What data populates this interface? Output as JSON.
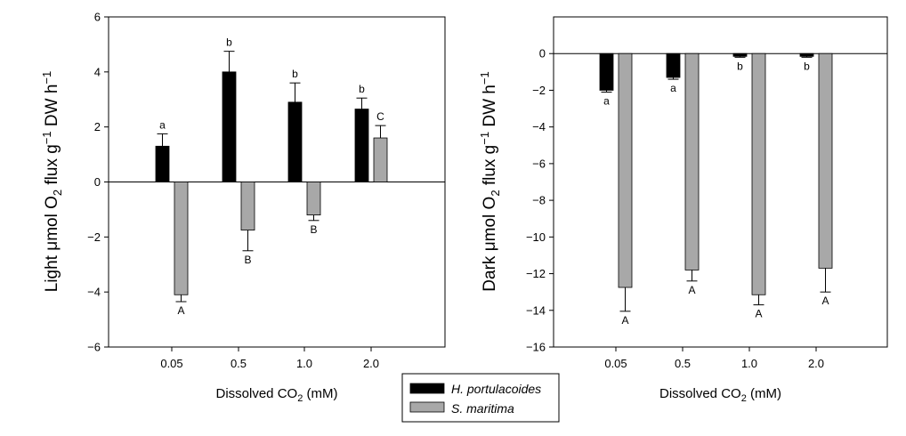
{
  "chart_data": [
    {
      "type": "bar",
      "panel": "light",
      "categories": [
        "0.05",
        "0.5",
        "1.0",
        "2.0"
      ],
      "xlabel": "Dissolved CO2 (mM)",
      "ylabel": {
        "prefix": "Light",
        "text": " μmol O",
        "sub": "2",
        "rest": " flux g",
        "sup": "−1",
        "tail": " DW h",
        "sup2": "−1"
      },
      "ylim": [
        -6,
        6
      ],
      "yticks": [
        -6,
        -4,
        -2,
        0,
        2,
        4,
        6
      ],
      "grid": false,
      "series": [
        {
          "name": "H. portulacoides",
          "color": "#000000",
          "values": [
            1.3,
            4.0,
            2.9,
            2.65
          ],
          "errors": [
            0.45,
            0.75,
            0.7,
            0.4
          ],
          "letters": [
            "a",
            "b",
            "b",
            "b"
          ]
        },
        {
          "name": "S. maritima",
          "color": "#a8a8a8",
          "values": [
            -4.1,
            -1.75,
            -1.2,
            1.6
          ],
          "errors": [
            0.25,
            0.75,
            0.2,
            0.45
          ],
          "letters": [
            "A",
            "B",
            "B",
            "C"
          ]
        }
      ]
    },
    {
      "type": "bar",
      "panel": "dark",
      "categories": [
        "0.05",
        "0.5",
        "1.0",
        "2.0"
      ],
      "xlabel": "Dissolved CO2 (mM)",
      "ylabel": {
        "prefix": "Dark",
        "text": " μmol O",
        "sub": "2",
        "rest": " flux g",
        "sup": "−1",
        "tail": " DW h",
        "sup2": "−1"
      },
      "ylim": [
        -16,
        2
      ],
      "yticks": [
        -16,
        -14,
        -12,
        -10,
        -8,
        -6,
        -4,
        -2,
        0
      ],
      "grid": false,
      "series": [
        {
          "name": "H. portulacoides",
          "color": "#000000",
          "values": [
            -2.0,
            -1.3,
            -0.15,
            -0.15
          ],
          "errors": [
            0.1,
            0.1,
            0.05,
            0.05
          ],
          "letters": [
            "a",
            "a",
            "b",
            "b"
          ]
        },
        {
          "name": "S. maritima",
          "color": "#a8a8a8",
          "values": [
            -12.75,
            -11.8,
            -13.15,
            -11.7
          ],
          "errors": [
            1.3,
            0.6,
            0.55,
            1.3
          ],
          "letters": [
            "A",
            "A",
            "A",
            "A"
          ]
        }
      ]
    }
  ],
  "legend": {
    "placement": "bottom-center",
    "items": [
      {
        "label": "H. portulacoides",
        "color": "#000000"
      },
      {
        "label": "S. maritima",
        "color": "#a8a8a8"
      }
    ]
  }
}
